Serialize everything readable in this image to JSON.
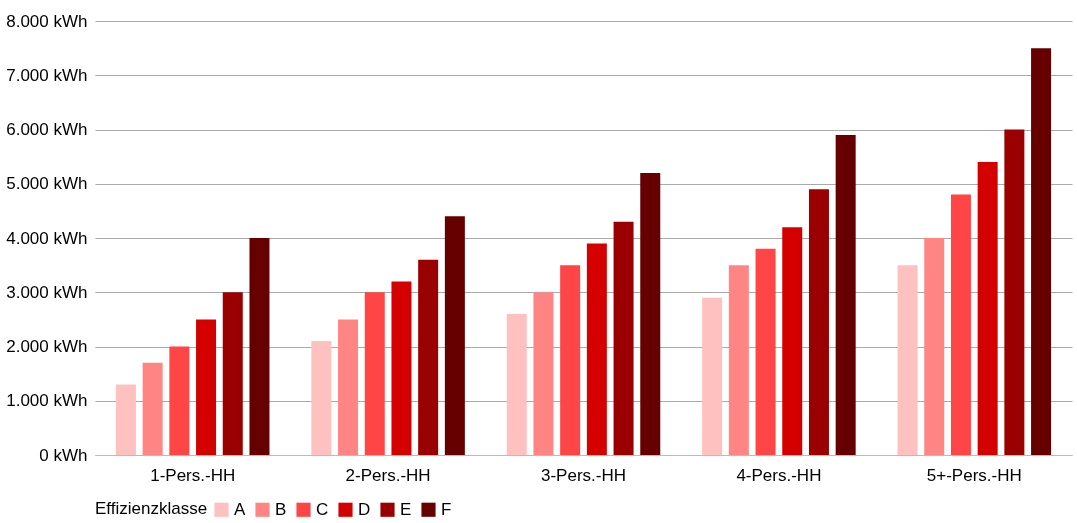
{
  "chart_data": {
    "type": "bar",
    "categories": [
      "1-Pers.-HH",
      "2-Pers.-HH",
      "3-Pers.-HH",
      "4-Pers.-HH",
      "5+-Pers.-HH"
    ],
    "series": [
      {
        "name": "A",
        "color": "#ffc0c0",
        "values": [
          1300,
          2100,
          2600,
          2900,
          3500
        ]
      },
      {
        "name": "B",
        "color": "#ff8585",
        "values": [
          1700,
          2500,
          3000,
          3500,
          4000
        ]
      },
      {
        "name": "C",
        "color": "#ff4545",
        "values": [
          2000,
          3000,
          3500,
          3800,
          4800
        ]
      },
      {
        "name": "D",
        "color": "#d40000",
        "values": [
          2500,
          3200,
          3900,
          4200,
          5400
        ]
      },
      {
        "name": "E",
        "color": "#9a0000",
        "values": [
          3000,
          3600,
          4300,
          4900,
          6000
        ]
      },
      {
        "name": "F",
        "color": "#660000",
        "values": [
          4000,
          4400,
          5200,
          5900,
          7500
        ]
      }
    ],
    "legend_title": "Effizienzklasse",
    "legend": "bottom",
    "grid": "y",
    "ylim": [
      0,
      8000
    ],
    "yticks": [
      {
        "value": 0,
        "label": "0 kWh"
      },
      {
        "value": 1000,
        "label": "1.000 kWh"
      },
      {
        "value": 2000,
        "label": "2.000 kWh"
      },
      {
        "value": 3000,
        "label": "3.000 kWh"
      },
      {
        "value": 4000,
        "label": "4.000 kWh"
      },
      {
        "value": 5000,
        "label": "5.000 kWh"
      },
      {
        "value": 6000,
        "label": "6.000 kWh"
      },
      {
        "value": 7000,
        "label": "7.000 kWh"
      },
      {
        "value": 8000,
        "label": "8.000 kWh"
      }
    ]
  }
}
